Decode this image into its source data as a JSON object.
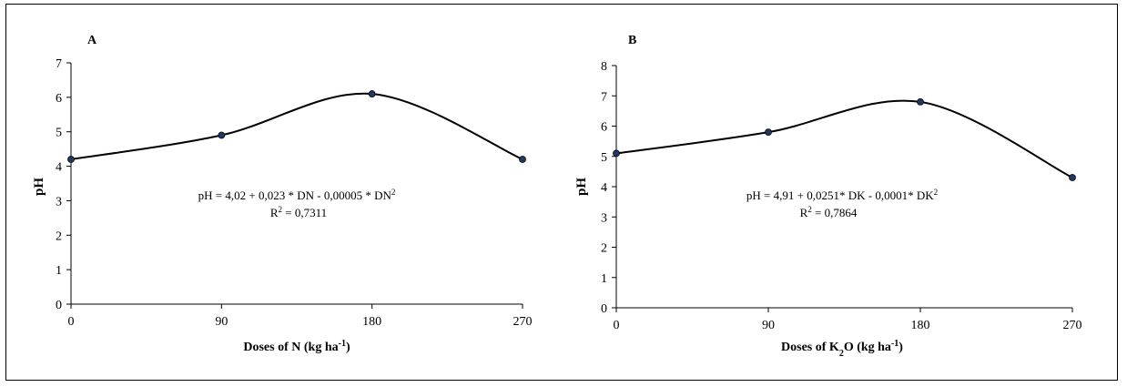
{
  "chart_data": [
    {
      "type": "line",
      "panel_label": "A",
      "x": [
        0,
        90,
        180,
        270
      ],
      "series": [
        {
          "values": [
            4.2,
            4.9,
            6.1,
            4.2
          ]
        }
      ],
      "xlabel": "Doses of N (kg ha",
      "xlabel_sup": "-1",
      "xlabel_end": ")",
      "ylabel": "pH",
      "ylim": [
        0,
        7
      ],
      "xlim": [
        0,
        270
      ],
      "x_ticks": [
        "0",
        "90",
        "180",
        "270"
      ],
      "y_ticks": [
        "0",
        "1",
        "2",
        "3",
        "4",
        "5",
        "6",
        "7"
      ],
      "equation_main": "pH = 4,02 + 0,023 * DN - 0,00005 * DN",
      "equation_sup": "2",
      "r2_prefix": "R",
      "r2_sup": "2",
      "r2_value": " = 0,7311",
      "grid": false,
      "line_color": "#000000",
      "marker_color": "#1f3864"
    },
    {
      "type": "line",
      "panel_label": "B",
      "x": [
        0,
        90,
        180,
        270
      ],
      "series": [
        {
          "values": [
            5.1,
            5.8,
            6.8,
            4.3
          ]
        }
      ],
      "xlabel": "Doses of K",
      "xlabel_sub": "2",
      "xlabel_mid": "O (kg ha",
      "xlabel_sup": "-1",
      "xlabel_end": ")",
      "ylabel": "pH",
      "ylim": [
        0,
        8
      ],
      "xlim": [
        0,
        270
      ],
      "x_ticks": [
        "0",
        "90",
        "180",
        "270"
      ],
      "y_ticks": [
        "0",
        "1",
        "2",
        "3",
        "4",
        "5",
        "6",
        "7",
        "8"
      ],
      "equation_main": "pH = 4,91  + 0,0251*  DK  - 0,0001*  DK",
      "equation_sup": "2",
      "r2_prefix": "R",
      "r2_sup": "2",
      "r2_value": " = 0,7864",
      "grid": false,
      "line_color": "#000000",
      "marker_color": "#1f3864"
    }
  ]
}
